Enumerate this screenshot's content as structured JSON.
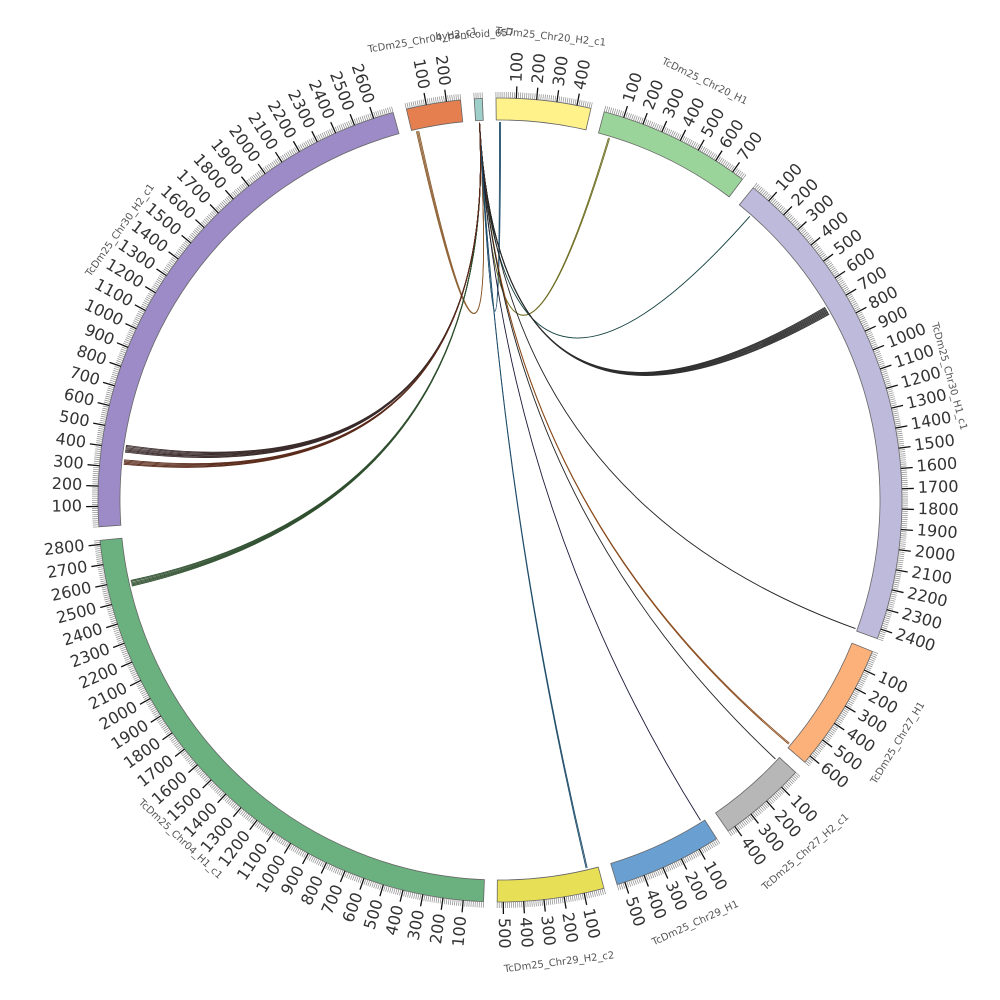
{
  "diagram": {
    "type": "circos",
    "sequences": [
      {
        "name": "TcDm25_Chr20_H2_c1",
        "length": 470,
        "color": "#fff28a",
        "ticks": [
          "100",
          "200",
          "300",
          "400"
        ]
      },
      {
        "name": "TcDm25_Chr20_H1",
        "length": 760,
        "color": "#9bd49a",
        "ticks": [
          "100",
          "200",
          "300",
          "400",
          "500",
          "600",
          "700"
        ]
      },
      {
        "name": "TcDm25_Chr30_H1_c1",
        "length": 2450,
        "color": "#bebadb",
        "ticks": [
          "100",
          "200",
          "300",
          "400",
          "500",
          "600",
          "700",
          "800",
          "900",
          "1000",
          "1100",
          "1200",
          "1300",
          "1400",
          "1500",
          "1600",
          "1700",
          "1800",
          "1900",
          "2000",
          "2100",
          "2200",
          "2300",
          "2400"
        ]
      },
      {
        "name": "TcDm25_Chr27_H1",
        "length": 640,
        "color": "#fdb17a",
        "ticks": [
          "100",
          "200",
          "300",
          "400",
          "500",
          "600"
        ]
      },
      {
        "name": "TcDm25_Chr27_H2_c1",
        "length": 440,
        "color": "#b7b7b7",
        "ticks": [
          "100",
          "200",
          "300",
          "400"
        ]
      },
      {
        "name": "TcDm25_Chr29_H1",
        "length": 540,
        "color": "#6a9fd2",
        "ticks": [
          "100",
          "200",
          "300",
          "400",
          "500"
        ]
      },
      {
        "name": "TcDm25_Chr29_H2_c2",
        "length": 530,
        "color": "#e7df55",
        "ticks": [
          "100",
          "200",
          "300",
          "400",
          "500"
        ]
      },
      {
        "name": "TcDm25_Chr04_H1_c1",
        "length": 2820,
        "color": "#6bb17f",
        "ticks": [
          "100",
          "200",
          "300",
          "400",
          "500",
          "600",
          "700",
          "800",
          "900",
          "1000",
          "1100",
          "1200",
          "1300",
          "1400",
          "1500",
          "1600",
          "1700",
          "1800",
          "1900",
          "2000",
          "2100",
          "2200",
          "2300",
          "2400",
          "2500",
          "2600",
          "2700",
          "2800"
        ]
      },
      {
        "name": "TcDm25_Chr30_H2_c1",
        "length": 2700,
        "color": "#9c8bc6",
        "ticks": [
          "100",
          "200",
          "300",
          "400",
          "500",
          "600",
          "700",
          "800",
          "900",
          "1000",
          "1100",
          "1200",
          "1300",
          "1400",
          "1500",
          "1600",
          "1700",
          "1800",
          "1900",
          "2000",
          "2100",
          "2200",
          "2300",
          "2400",
          "2500",
          "2600"
        ]
      },
      {
        "name": "TcDm25_Chr04_H2_c1",
        "length": 270,
        "color": "#e57f4f",
        "ticks": [
          "100",
          "200"
        ]
      },
      {
        "name": "bypanicoid_657",
        "length": 40,
        "color": "#9fcfc9",
        "ticks": []
      }
    ],
    "link_hub": "bypanicoid_657",
    "links": [
      {
        "target": "TcDm25_Chr04_H2_c1",
        "pos": 30,
        "count": 3,
        "color": "#8a5a2b"
      },
      {
        "target": "TcDm25_Chr20_H2_c1",
        "pos": 20,
        "count": 2,
        "color": "#1f4d6b"
      },
      {
        "target": "TcDm25_Chr20_H1",
        "pos": 60,
        "count": 2,
        "color": "#6b6b1f"
      },
      {
        "target": "TcDm25_Chr30_H1_c1",
        "pos": 80,
        "count": 1,
        "color": "#0d3b3b"
      },
      {
        "target": "TcDm25_Chr30_H1_c1",
        "pos": 720,
        "count": 8,
        "color": "#2e2e2e"
      },
      {
        "target": "TcDm25_Chr30_H1_c1",
        "pos": 2440,
        "count": 1,
        "color": "#222222"
      },
      {
        "target": "TcDm25_Chr27_H1",
        "pos": 620,
        "count": 2,
        "color": "#8a4a1a"
      },
      {
        "target": "TcDm25_Chr27_H2_c1",
        "pos": 20,
        "count": 1,
        "color": "#222222"
      },
      {
        "target": "TcDm25_Chr29_H1",
        "pos": 20,
        "count": 1,
        "color": "#1a1a3a"
      },
      {
        "target": "TcDm25_Chr29_H2_c2",
        "pos": 60,
        "count": 2,
        "color": "#1f4d6b"
      },
      {
        "target": "TcDm25_Chr04_H1_c1",
        "pos": 2580,
        "count": 6,
        "color": "#2f4f2f"
      },
      {
        "target": "TcDm25_Chr30_H2_c1",
        "pos": 400,
        "count": 7,
        "color": "#3a2a2a"
      },
      {
        "target": "TcDm25_Chr30_H2_c1",
        "pos": 330,
        "count": 5,
        "color": "#5a2a1a"
      }
    ]
  }
}
